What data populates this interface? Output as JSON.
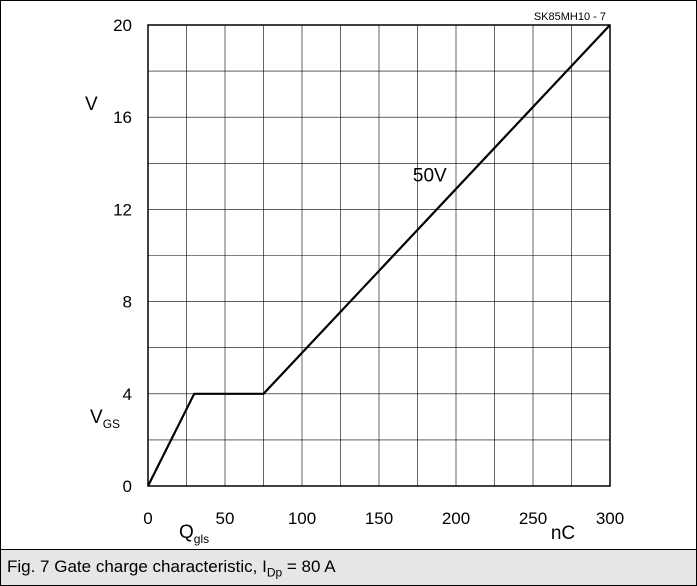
{
  "chart_data": {
    "type": "line",
    "code_label": "SK85MH10 - 7",
    "x_ticks": [
      "0",
      "50",
      "100",
      "150",
      "200",
      "250",
      "300"
    ],
    "y_ticks": [
      "0",
      "4",
      "8",
      "12",
      "16",
      "20"
    ],
    "x_tick_values": [
      0,
      50,
      100,
      150,
      200,
      250,
      300
    ],
    "y_tick_values": [
      0,
      4,
      8,
      12,
      16,
      20
    ],
    "xlim": [
      0,
      300
    ],
    "ylim": [
      0,
      20
    ],
    "x_minor_grid": [
      25,
      75,
      125,
      175,
      225,
      275
    ],
    "y_minor_grid": [
      2,
      6,
      10,
      14,
      18
    ],
    "grid": true,
    "x_unit": "nC",
    "y_unit": "V",
    "y_symbol_main": "V",
    "y_symbol_sub": "GS",
    "x_symbol_main": "Q",
    "x_symbol_sub": "gls",
    "series": [
      {
        "name": "50V",
        "x": [
          0,
          30,
          75,
          300
        ],
        "y": [
          0,
          4,
          4,
          20
        ]
      }
    ],
    "annotation": {
      "text": "50V",
      "x": 183,
      "y": 13.2
    }
  },
  "caption": {
    "prefix": "Fig. 7 Gate charge characteristic, I",
    "sub": "Dp",
    "suffix": " = 80 A"
  }
}
